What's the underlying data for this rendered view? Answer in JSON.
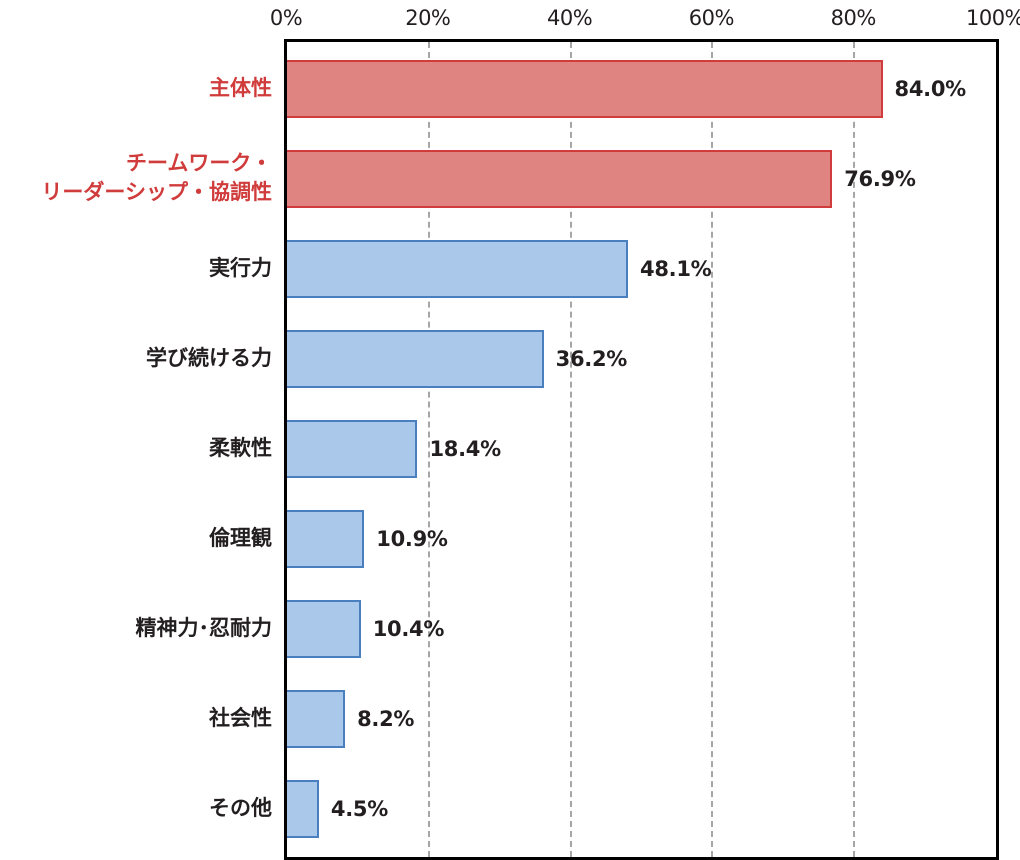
{
  "chart_data": {
    "type": "bar",
    "orientation": "horizontal",
    "title": "",
    "xlabel": "",
    "ylabel": "",
    "xlim": [
      0,
      100
    ],
    "x_ticks": [
      "0%",
      "20%",
      "40%",
      "60%",
      "80%",
      "100%"
    ],
    "grid": {
      "x": true,
      "style": "dashed"
    },
    "categories": [
      "主体性",
      "チームワーク・リーダーシップ・協調性",
      "実行力",
      "学び続ける力",
      "柔軟性",
      "倫理観",
      "精神力・忍耐力",
      "社会性",
      "その他"
    ],
    "category_lines": [
      [
        "主体性"
      ],
      [
        "チームワーク・",
        "リーダーシップ・協調性"
      ],
      [
        "実行力"
      ],
      [
        "学び続ける力"
      ],
      [
        "柔軟性"
      ],
      [
        "倫理観"
      ],
      [
        "精神力･忍耐力"
      ],
      [
        "社会性"
      ],
      [
        "その他"
      ]
    ],
    "values": [
      84.0,
      76.9,
      48.1,
      36.2,
      18.4,
      10.9,
      10.4,
      8.2,
      4.5
    ],
    "value_labels": [
      "84.0%",
      "76.9%",
      "48.1%",
      "36.2%",
      "18.4%",
      "10.9%",
      "10.4%",
      "8.2%",
      "4.5%"
    ],
    "highlighted": [
      true,
      true,
      false,
      false,
      false,
      false,
      false,
      false,
      false
    ],
    "colors": {
      "highlight_fill": "#e08482",
      "highlight_border": "#d03c3c",
      "highlight_label": "#d03c3c",
      "normal_fill": "#a9c8ea",
      "normal_border": "#4a7fbf",
      "normal_label": "#231f20"
    }
  }
}
